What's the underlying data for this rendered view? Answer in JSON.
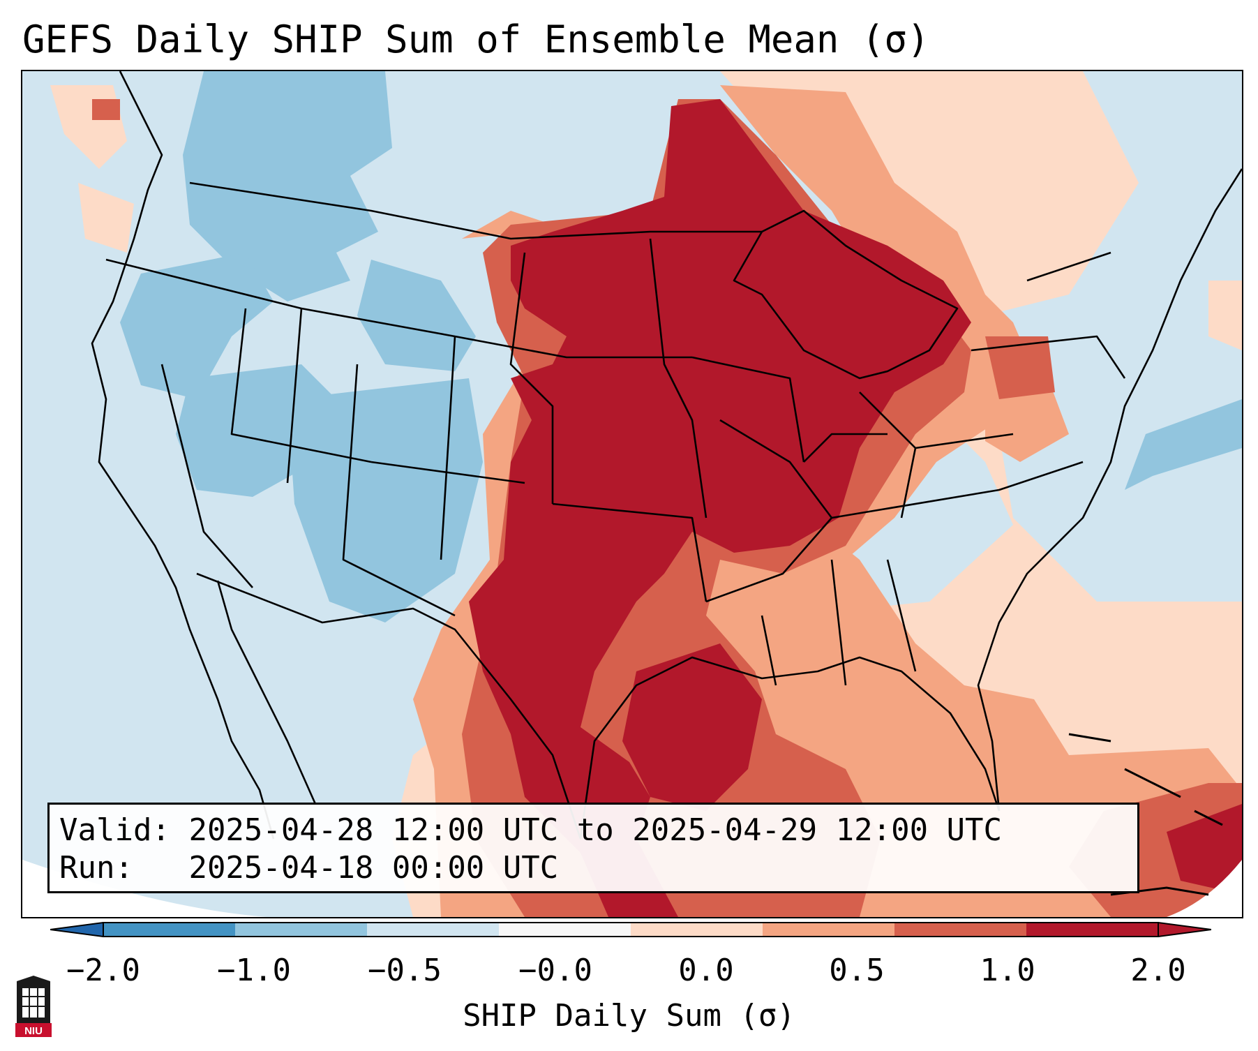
{
  "title": "GEFS Daily SHIP Sum of Ensemble Mean (σ)",
  "info": {
    "valid_label": "Valid:",
    "valid_value": "2025-04-28 12:00 UTC to 2025-04-29 12:00 UTC",
    "run_label": "Run:",
    "run_value": "2025-04-18 00:00 UTC"
  },
  "colorbar": {
    "label": "SHIP Daily Sum (σ)",
    "ticks": [
      "−2.0",
      "−1.0",
      "−0.5",
      "−0.0",
      "0.0",
      "0.5",
      "1.0",
      "2.0"
    ],
    "colors": [
      "#4393c3",
      "#92c5de",
      "#d1e5f0",
      "#f7f7f7",
      "#fddbc7",
      "#f4a582",
      "#d6604d",
      "#b2182b"
    ],
    "extend_low_color": "#2166ac",
    "extend_high_color": "#b2182b"
  },
  "legend_colors": {
    "strong_negative": "#92c5de",
    "weak_negative": "#d1e5f0",
    "weak_positive": "#fddbc7",
    "moderate_positive": "#f4a582",
    "positive": "#d6604d",
    "strong_positive": "#b2182b"
  },
  "map": {
    "region": "Contiguous United States",
    "projection": "Lambert Conformal"
  },
  "logo": {
    "text": "NIU"
  }
}
